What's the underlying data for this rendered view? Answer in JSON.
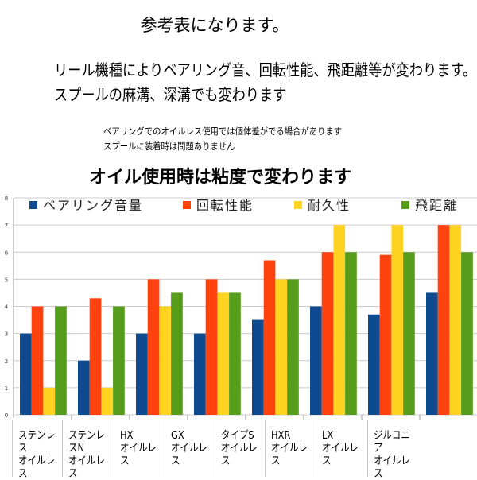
{
  "header": {
    "title": "参考表になります。",
    "line1": "リール機種によりベアリング音、回転性能、飛距離等が変わります。",
    "line2": "スプールの麻溝、深溝でも変わります",
    "note1": "ベアリングでのオイルレス使用では個体差がでる場合があります",
    "note2": "スプールに装着時は問題ありません",
    "subtitle": "オイル使用時は粘度で変わります"
  },
  "chart_data": {
    "type": "bar",
    "ylim": [
      0,
      8
    ],
    "yticks": [
      "0",
      "1",
      "2",
      "3",
      "4",
      "5",
      "6",
      "7",
      "8"
    ],
    "grid": true,
    "legend_position": "top",
    "categories": [
      {
        "line1": "ステンレス",
        "line2": "オイルレス"
      },
      {
        "line1": "ステンレスN",
        "line2": "オイルレス"
      },
      {
        "line1": "HX",
        "line2": "オイルレス"
      },
      {
        "line1": "GX",
        "line2": "オイルレス"
      },
      {
        "line1": "タイプS",
        "line2": "オイルレス"
      },
      {
        "line1": "HXR",
        "line2": "オイルレス"
      },
      {
        "line1": "LX",
        "line2": "オイルレス"
      },
      {
        "line1": "ジルコニア",
        "line2": "オイルレス"
      }
    ],
    "series": [
      {
        "name": "ベアリング音量",
        "color": "#0d4a8f",
        "values": [
          3,
          2,
          3,
          3,
          3.5,
          4,
          3.7,
          4.5
        ]
      },
      {
        "name": "回転性能",
        "color": "#ff420e",
        "values": [
          4,
          4.3,
          5,
          5,
          5.7,
          6,
          5.9,
          7
        ]
      },
      {
        "name": "耐久性",
        "color": "#ffd320",
        "values": [
          1,
          1,
          4,
          4.5,
          5,
          7,
          7,
          7
        ]
      },
      {
        "name": "飛距離",
        "color": "#579d1c",
        "values": [
          4,
          4,
          4.5,
          4.5,
          5,
          6,
          6,
          6
        ]
      }
    ]
  }
}
